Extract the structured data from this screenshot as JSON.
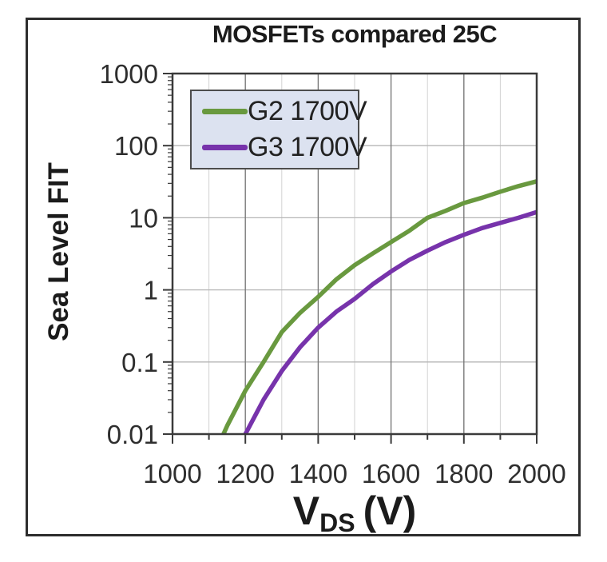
{
  "figure": {
    "x_title_parts": {
      "main": "V",
      "sub": "DS",
      "rest": "(V)"
    }
  },
  "chart_data": {
    "type": "line",
    "title": "MOSFETs compared 25C",
    "xlabel": "V_DS (V)",
    "ylabel": "Sea Level FIT",
    "x_axis": {
      "scale": "linear",
      "min": 1000,
      "max": 2000,
      "major_tick_step": 200,
      "minor_tick_step": 100,
      "tick_labels": [
        "1000",
        "1200",
        "1400",
        "1600",
        "1800",
        "2000"
      ]
    },
    "y_axis": {
      "scale": "log",
      "min": 0.01,
      "max": 1000,
      "tick_values": [
        1000,
        100,
        10,
        1,
        0.1,
        0.01
      ],
      "tick_labels": [
        "1000",
        "100",
        "10",
        "1",
        "0.1",
        "0.01"
      ]
    },
    "grid": true,
    "legend_position": "top-left-inside",
    "style": {
      "axis_color": "#3a3a3a",
      "major_grid_color": "#7a7a7a",
      "minor_grid_color": "#d2d2d2",
      "h_grid_color": "#b6b6b6",
      "legend_bg": "#dce2f0",
      "legend_border": "#4d4d4d",
      "frame_border": "#2d2d2d"
    },
    "series": [
      {
        "name": "G2 1700V",
        "color": "#69993f",
        "points": [
          [
            1140,
            0.01
          ],
          [
            1150,
            0.013
          ],
          [
            1200,
            0.04
          ],
          [
            1250,
            0.1
          ],
          [
            1300,
            0.26
          ],
          [
            1350,
            0.48
          ],
          [
            1400,
            0.8
          ],
          [
            1450,
            1.4
          ],
          [
            1500,
            2.2
          ],
          [
            1550,
            3.2
          ],
          [
            1600,
            4.6
          ],
          [
            1650,
            6.6
          ],
          [
            1700,
            10
          ],
          [
            1750,
            12.5
          ],
          [
            1800,
            16
          ],
          [
            1850,
            19
          ],
          [
            1900,
            23
          ],
          [
            1950,
            27.5
          ],
          [
            2000,
            32
          ]
        ]
      },
      {
        "name": "G3 1700V",
        "color": "#7733ab",
        "points": [
          [
            1200,
            0.01
          ],
          [
            1250,
            0.03
          ],
          [
            1300,
            0.075
          ],
          [
            1350,
            0.16
          ],
          [
            1400,
            0.3
          ],
          [
            1450,
            0.5
          ],
          [
            1500,
            0.75
          ],
          [
            1550,
            1.2
          ],
          [
            1600,
            1.8
          ],
          [
            1650,
            2.6
          ],
          [
            1700,
            3.5
          ],
          [
            1750,
            4.6
          ],
          [
            1800,
            5.8
          ],
          [
            1850,
            7.2
          ],
          [
            1900,
            8.5
          ],
          [
            1950,
            10
          ],
          [
            2000,
            12
          ]
        ]
      }
    ]
  }
}
